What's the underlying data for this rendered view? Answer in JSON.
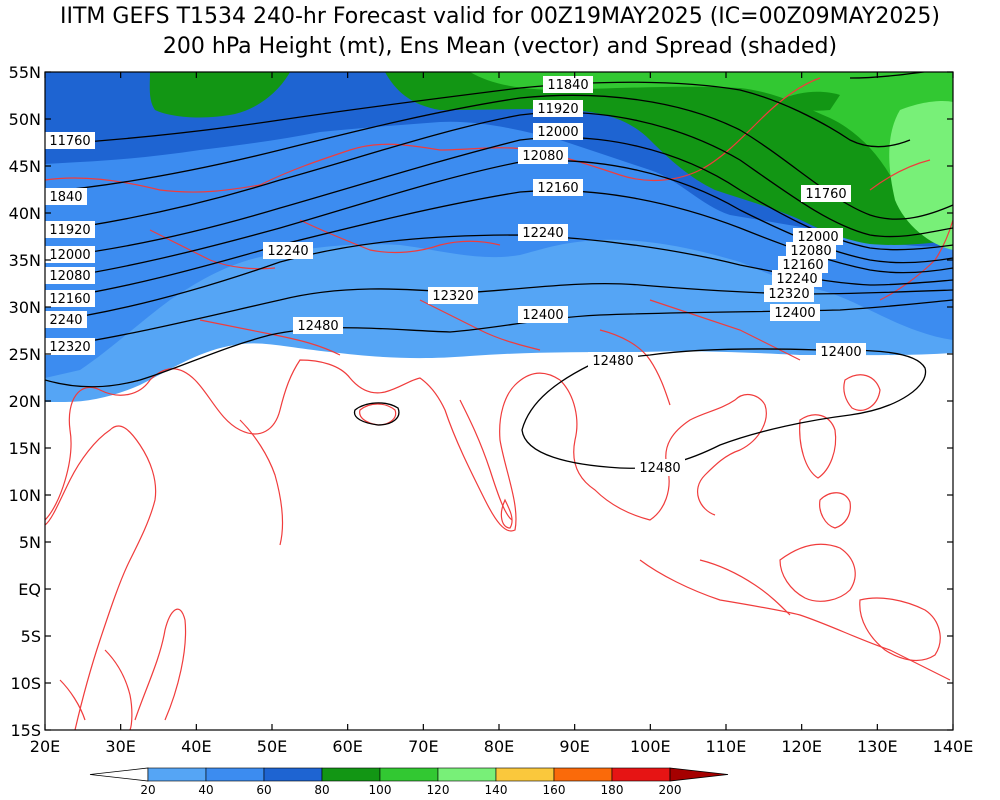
{
  "title": {
    "line1": "IITM GEFS T1534 240-hr Forecast valid for 00Z19MAY2025 (IC=00Z09MAY2025)",
    "line2": "200 hPa Height (mt), Ens Mean (vector) and Spread (shaded)"
  },
  "axes": {
    "lon_ticks": [
      "20E",
      "30E",
      "40E",
      "50E",
      "60E",
      "70E",
      "80E",
      "90E",
      "100E",
      "110E",
      "120E",
      "130E",
      "140E"
    ],
    "lat_ticks": [
      "55N",
      "50N",
      "45N",
      "40N",
      "35N",
      "30N",
      "25N",
      "20N",
      "15N",
      "10N",
      "5N",
      "EQ",
      "5S",
      "10S",
      "15S"
    ],
    "lon_range": [
      20,
      140
    ],
    "lat_range": [
      -15,
      55
    ]
  },
  "colorbar": {
    "labels": [
      "20",
      "40",
      "60",
      "80",
      "100",
      "120",
      "140",
      "160",
      "180",
      "200"
    ],
    "colors": [
      "#55a5f5",
      "#3c8cf0",
      "#1e64d2",
      "#129614",
      "#32c832",
      "#78f078",
      "#fac83c",
      "#fa6a0a",
      "#e61414",
      "#a50000"
    ]
  },
  "contours": {
    "labels": [
      "11840",
      "11920",
      "12000",
      "12080",
      "12160",
      "12240",
      "12320",
      "12400",
      "12480",
      "11760",
      "11760",
      "1840",
      "11920",
      "12000",
      "12080",
      "12160",
      "2240",
      "12320",
      "12240",
      "12320",
      "12400",
      "12480",
      "12480",
      "12000",
      "12080",
      "12160",
      "12240",
      "12320",
      "12400"
    ]
  },
  "colors": {
    "coastline": "#f03c3c",
    "contour_line": "#000000"
  }
}
